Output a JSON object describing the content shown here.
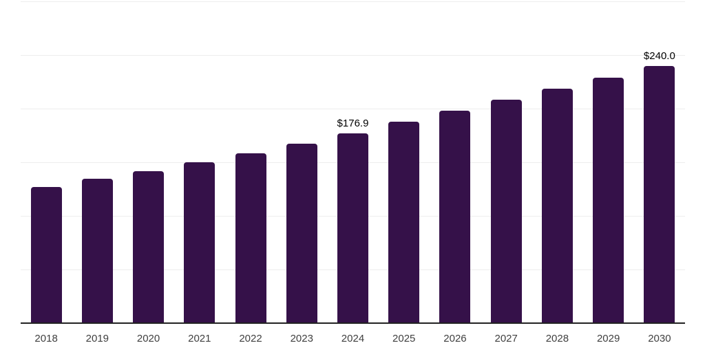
{
  "chart_data": {
    "type": "bar",
    "title": "",
    "xlabel": "",
    "ylabel": "",
    "categories": [
      "2018",
      "2019",
      "2020",
      "2021",
      "2022",
      "2023",
      "2024",
      "2025",
      "2026",
      "2027",
      "2028",
      "2029",
      "2030"
    ],
    "values": [
      127.2,
      134.5,
      142.1,
      150.2,
      158.8,
      167.6,
      176.9,
      188.3,
      198.3,
      208.8,
      219.1,
      229.4,
      240.0
    ],
    "data_labels": [
      null,
      null,
      null,
      null,
      null,
      null,
      "$176.9",
      null,
      null,
      null,
      null,
      null,
      "$240.0"
    ],
    "ylim": [
      0,
      300
    ],
    "gridline_step": 50,
    "grid": true,
    "legend": false,
    "colors": {
      "bar": "#351149",
      "gridline": "#ededed",
      "axis": "#222222",
      "tick_label": "#3f3f3f",
      "data_label": "#000000",
      "background": "#ffffff"
    }
  }
}
